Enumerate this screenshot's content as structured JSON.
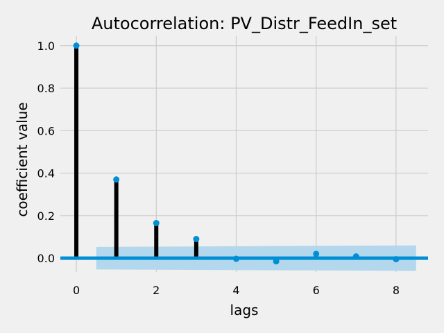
{
  "chart_data": {
    "type": "stem",
    "title": "Autocorrelation: PV_Distr_FeedIn_set",
    "xlabel": "lags",
    "ylabel": "coefficient value",
    "xlim": [
      -0.4,
      8.8
    ],
    "ylim": [
      -0.065,
      1.045
    ],
    "xticks": [
      0,
      2,
      4,
      6,
      8
    ],
    "xtick_labels": [
      "0",
      "2",
      "4",
      "6",
      "8"
    ],
    "yticks": [
      0.0,
      0.2,
      0.4,
      0.6,
      0.8,
      1.0
    ],
    "ytick_labels": [
      "0.0",
      "0.2",
      "0.4",
      "0.6",
      "0.8",
      "1.0"
    ],
    "grid": true,
    "lags": [
      0,
      1,
      2,
      3,
      4,
      5,
      6,
      7,
      8
    ],
    "values": [
      1.0,
      0.37,
      0.165,
      0.09,
      -0.003,
      -0.015,
      0.02,
      0.008,
      -0.005
    ],
    "confidence_band": {
      "x": [
        0.5,
        8.5
      ],
      "upper": [
        0.053,
        0.06
      ],
      "lower": [
        -0.053,
        -0.06
      ]
    },
    "colors": {
      "background": "#f0f0f0",
      "grid": "#cbcbcb",
      "stem": "#000000",
      "marker": "#008fd5",
      "zero_line": "#008fd5",
      "band": "#b3d7ec"
    }
  }
}
